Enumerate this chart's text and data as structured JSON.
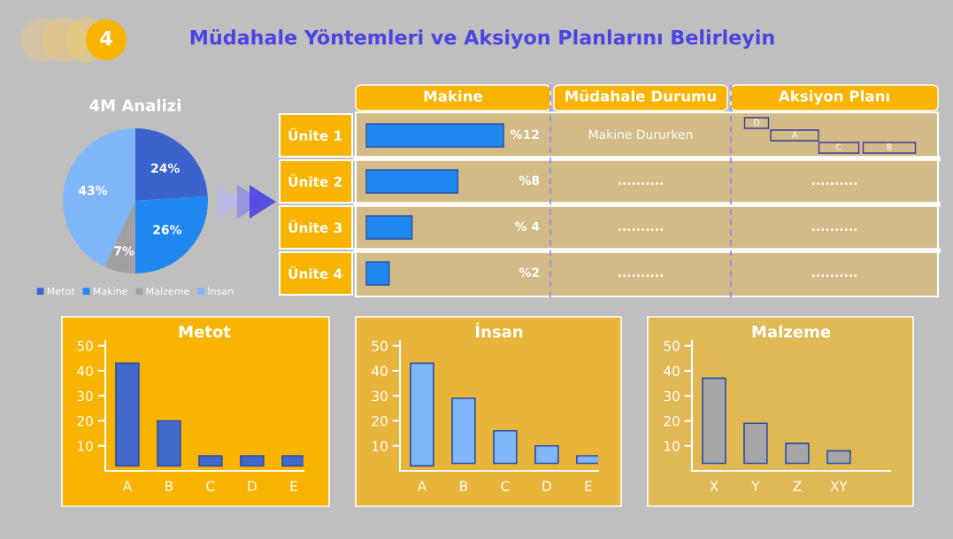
{
  "chart_data": [
    {
      "type": "other",
      "title": "Müdahale Yöntemleri ve Aksiyon Planlarını Belirleyin",
      "annotations": [
        "4"
      ]
    },
    {
      "type": "pie",
      "title": "4M Analizi",
      "categories": [
        "Metot",
        "Makine",
        "Malzeme",
        "İnsan"
      ],
      "values": [
        24,
        26,
        7,
        43
      ],
      "value_labels": [
        "24%",
        "26%",
        "7%",
        "43%"
      ],
      "colors": [
        "#3a63cc",
        "#1e88f0",
        "#a0a0a0",
        "#7fb6f7"
      ],
      "legend": "bottom"
    },
    {
      "type": "bar",
      "orientation": "horizontal",
      "title": "Makine",
      "categories": [
        "Ünite 1",
        "Ünite 2",
        "Ünite 3",
        "Ünite 4"
      ],
      "values": [
        12,
        8,
        4,
        2
      ],
      "value_labels": [
        "%12",
        "%8",
        "% 4",
        "%2"
      ],
      "color": "#1e88f0",
      "annotations": [
        "Müdahale Durumu",
        "Aksiyon Planı",
        "Makine Dururken",
        "..........",
        "..........",
        "..........",
        "D",
        "A",
        "C",
        "B",
        "..........",
        "..........",
        ".........."
      ]
    },
    {
      "type": "bar",
      "title": "Metot",
      "categories": [
        "A",
        "B",
        "C",
        "D",
        "E"
      ],
      "base": [
        2,
        2,
        2,
        2,
        2
      ],
      "values": [
        41,
        18,
        4,
        4,
        4
      ],
      "color": "#4169cc",
      "ylim": [
        0,
        52
      ],
      "yticks": [
        10,
        20,
        30,
        40,
        50
      ]
    },
    {
      "type": "bar",
      "title": "İnsan",
      "categories": [
        "A",
        "B",
        "C",
        "D",
        "E"
      ],
      "base": [
        2,
        3,
        3,
        3,
        3
      ],
      "values": [
        41,
        26,
        13,
        7,
        3
      ],
      "color": "#7fb6f7",
      "ylim": [
        0,
        52
      ],
      "yticks": [
        10,
        20,
        30,
        40,
        50
      ]
    },
    {
      "type": "bar",
      "title": "Malzeme",
      "categories": [
        "X",
        "Y",
        "Z",
        "XY"
      ],
      "base": [
        3,
        3,
        3,
        3
      ],
      "values": [
        34,
        16,
        8,
        5
      ],
      "color": "#a6a6a6",
      "ylim": [
        0,
        52
      ],
      "yticks": [
        10,
        20,
        30,
        40,
        50
      ]
    }
  ]
}
